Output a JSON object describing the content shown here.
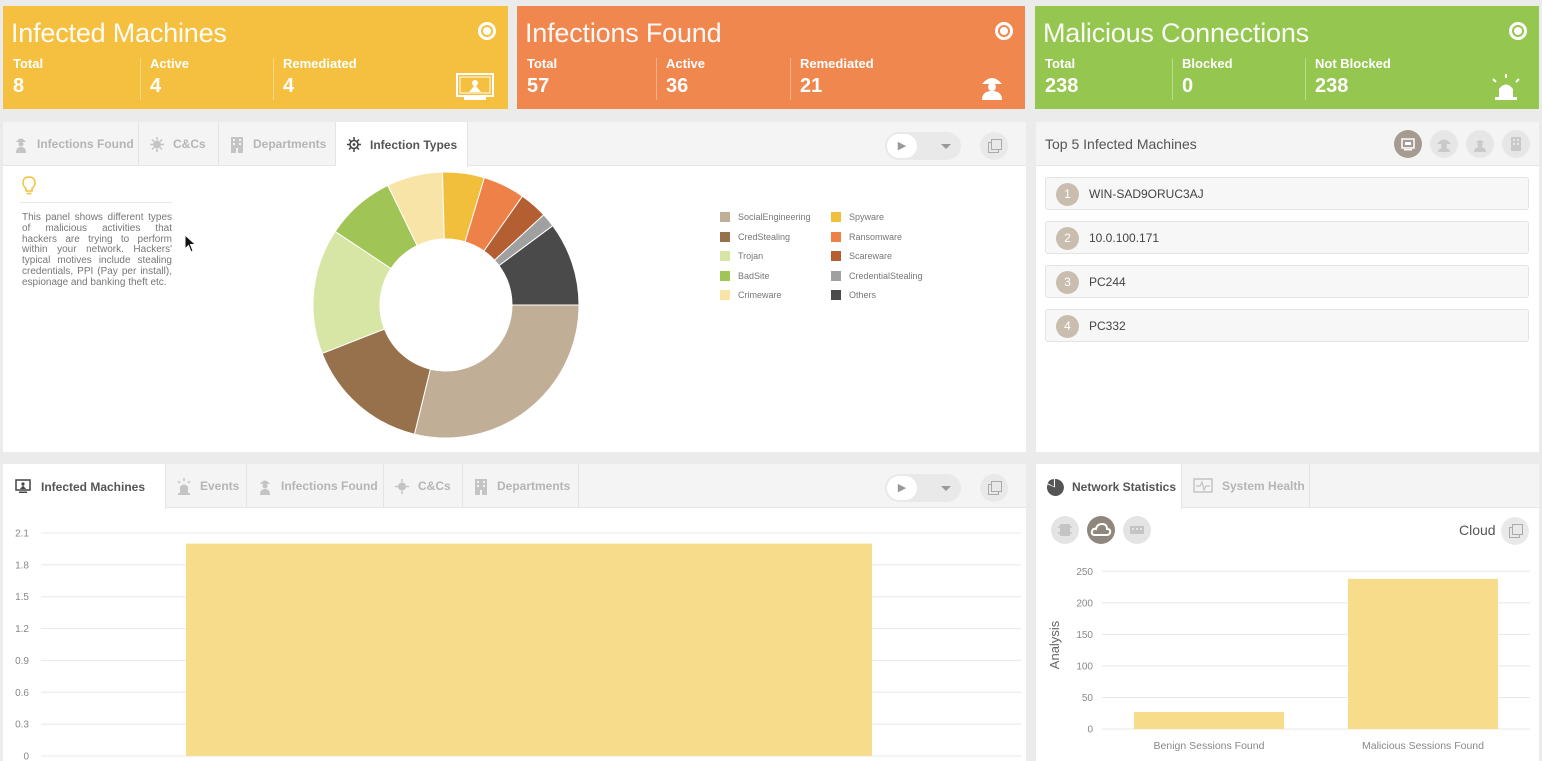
{
  "kpi": {
    "infected_machines": {
      "title": "Infected Machines",
      "stats": [
        {
          "label": "Total",
          "value": "8"
        },
        {
          "label": "Active",
          "value": "4"
        },
        {
          "label": "Remediated",
          "value": "4"
        }
      ]
    },
    "infections_found": {
      "title": "Infections Found",
      "stats": [
        {
          "label": "Total",
          "value": "57"
        },
        {
          "label": "Active",
          "value": "36"
        },
        {
          "label": "Remediated",
          "value": "21"
        }
      ]
    },
    "malicious_connections": {
      "title": "Malicious Connections",
      "stats": [
        {
          "label": "Total",
          "value": "238"
        },
        {
          "label": "Blocked",
          "value": "0"
        },
        {
          "label": "Not Blocked",
          "value": "238"
        }
      ]
    }
  },
  "colors": {
    "yellow": "#f5c03f",
    "orange": "#f0874f",
    "green": "#95c650"
  },
  "types_panel": {
    "tabs": [
      "Infections Found",
      "C&Cs",
      "Departments",
      "Infection Types"
    ],
    "active_tab": "Infection Types",
    "info_text": "This panel shows different types of malicious activities that hackers are trying to perform within your network. Hackers' typical motives include stealing credentials, PPI (Pay per install), espionage and banking theft etc.",
    "play_icon": "▶"
  },
  "top5": {
    "title": "Top 5 Infected Machines",
    "items": [
      {
        "rank": "1",
        "name": "WIN-SAD9ORUC3AJ"
      },
      {
        "rank": "2",
        "name": "10.0.100.171"
      },
      {
        "rank": "3",
        "name": "PC244"
      },
      {
        "rank": "4",
        "name": "PC332"
      }
    ]
  },
  "machines_panel": {
    "tabs": [
      "Infected Machines",
      "Events",
      "Infections Found",
      "C&Cs",
      "Departments"
    ],
    "active_tab": "Infected Machines",
    "play_icon": "▶"
  },
  "network_panel": {
    "tabs": [
      "Network Statistics",
      "System Health"
    ],
    "active_tab": "Network Statistics",
    "mode_label": "Cloud"
  },
  "chart_data": [
    {
      "type": "pie",
      "categories": [
        "SocialEngineering",
        "CredStealing",
        "Trojan",
        "BadSite",
        "Crimeware",
        "Spyware",
        "Ransomware",
        "Scareware",
        "CredentialStealing",
        "Others"
      ],
      "values": [
        17,
        9,
        9,
        5,
        4,
        3,
        3,
        2,
        1,
        6
      ],
      "colors": [
        "#c1ae96",
        "#96714b",
        "#d7e6a5",
        "#a0c455",
        "#f9e4a8",
        "#f2bf3c",
        "#ee8147",
        "#b45f32",
        "#a0a0a0",
        "#4a4a4a"
      ],
      "legend": "right"
    },
    {
      "type": "bar",
      "categories": [
        ""
      ],
      "values": [
        2
      ],
      "ylim": [
        0,
        2.1
      ],
      "yticks": [
        "2.1",
        "1.8",
        "1.5",
        "1.2",
        "0.9",
        "0.6",
        "0.3",
        "0"
      ],
      "color": "#f7dc8c",
      "grid": true
    },
    {
      "type": "bar",
      "categories": [
        "Benign Sessions Found",
        "Malicious Sessions Found"
      ],
      "values": [
        27,
        238
      ],
      "ylabel": "Analysis",
      "ylim": [
        0,
        260
      ],
      "yticks": [
        "250",
        "200",
        "150",
        "100",
        "50",
        "0"
      ],
      "color": "#f7dc8c",
      "grid": true
    }
  ]
}
